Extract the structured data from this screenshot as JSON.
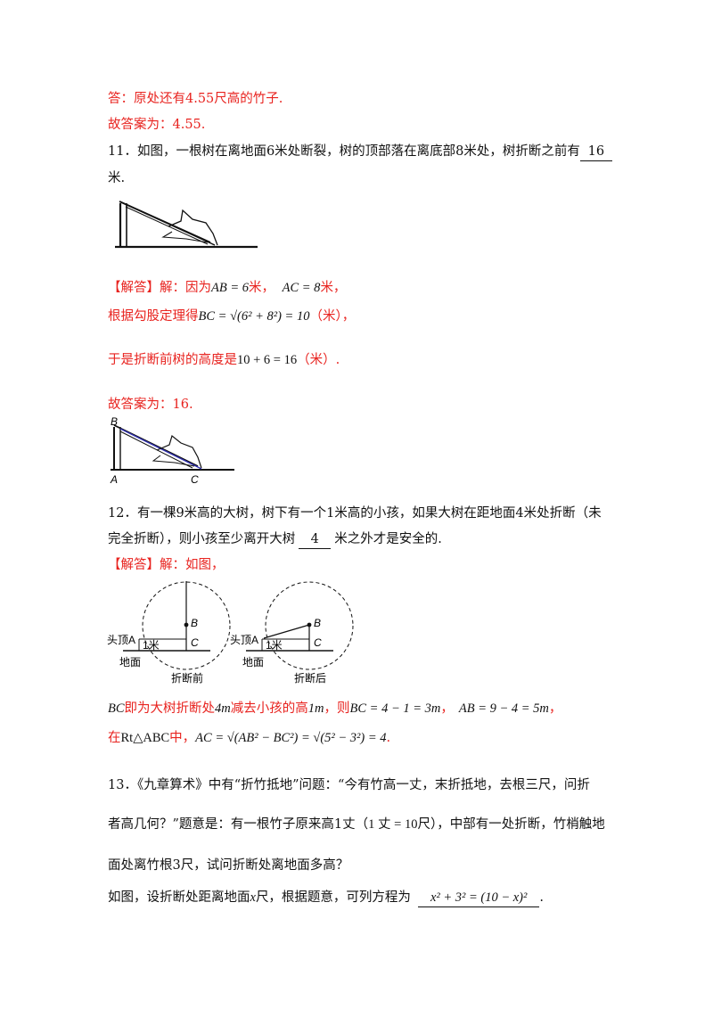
{
  "lines": {
    "l1": "答：原处还有4.55尺高的竹子.",
    "l2": "故答案为：4.55.",
    "q11_text": "11．如图，一根树在离地面6米处断裂，树的顶部落在离底部8米处，树折断之前有",
    "q11_answer": "16",
    "q11_tail": "米.",
    "sol11_prefix": "【解答】解：因为",
    "sol11_eq1": "AB = 6",
    "sol11_unit1": "米，",
    "sol11_eq2": "AC = 8",
    "sol11_unit2": "米，",
    "sol11_l2_text": "根据勾股定理得",
    "sol11_l2_math": "BC = √(6² + 8²) = 10",
    "sol11_l2_unit": "（米），",
    "sol11_l3_text": "于是折断前树的高度是",
    "sol11_l3_math": "10 + 6 = 16",
    "sol11_l3_unit": "（米）.",
    "ans11": "故答案为：16.",
    "q12_l1": "12．有一棵9米高的大树，树下有一个1米高的小孩，如果大树在距地面4米处折断（未",
    "q12_l2_a": "完全折断），则小孩至少离开大树",
    "q12_answer": "4",
    "q12_l2_b": "米之外才是安全的.",
    "sol12_head": "【解答】解：如图，",
    "sol12_l1_a": "BC",
    "sol12_l1_b": "即为大树折断处",
    "sol12_l1_c": "4m",
    "sol12_l1_d": "减去小孩的高",
    "sol12_l1_e": "1m",
    "sol12_l1_f": "，则",
    "sol12_l1_g": "BC = 4 − 1 = 3m",
    "sol12_l1_h": "，",
    "sol12_l1_i": "AB = 9 − 4 = 5m",
    "sol12_l1_j": "，",
    "sol12_l2_a": "在",
    "sol12_l2_b": "Rt△ABC",
    "sol12_l2_c": "中，",
    "sol12_l2_d": "AC = √(AB² − BC²) = √(5² − 3²) = 4",
    "sol12_l2_e": ".",
    "q13_l1": "13．《九章算术》中有“折竹抵地”问题：“今有竹高一丈，末折抵地，去根三尺，问折",
    "q13_l2_a": "者高几何？”题意是：有一根竹子原来高1丈（",
    "q13_l2_b": "1 丈 = 10",
    "q13_l2_c": "尺），中部有一处折断，竹梢触地",
    "q13_l3": "面处离竹根3尺，试问折断处离地面多高？",
    "q13_l4_a": "如图，设折断处距离地面",
    "q13_l4_b": "x",
    "q13_l4_c": "尺，根据题意，可列方程为",
    "q13_answer": "x² + 3² = (10 − x)²",
    "q13_l4_d": "."
  },
  "figure2": {
    "label_b": "B",
    "label_a": "A",
    "label_c": "C"
  },
  "figure3": {
    "left": {
      "label_b": "B",
      "label_c": "C",
      "label_head": "头顶A",
      "label_meter": "1米",
      "label_ground": "地面",
      "caption": "折断前"
    },
    "right": {
      "label_b": "B",
      "label_c": "C",
      "label_head": "头顶A",
      "label_meter": "1米",
      "label_ground": "地面",
      "caption": "折断后"
    }
  },
  "colors": {
    "red": "#e8231f",
    "text": "#111111"
  }
}
